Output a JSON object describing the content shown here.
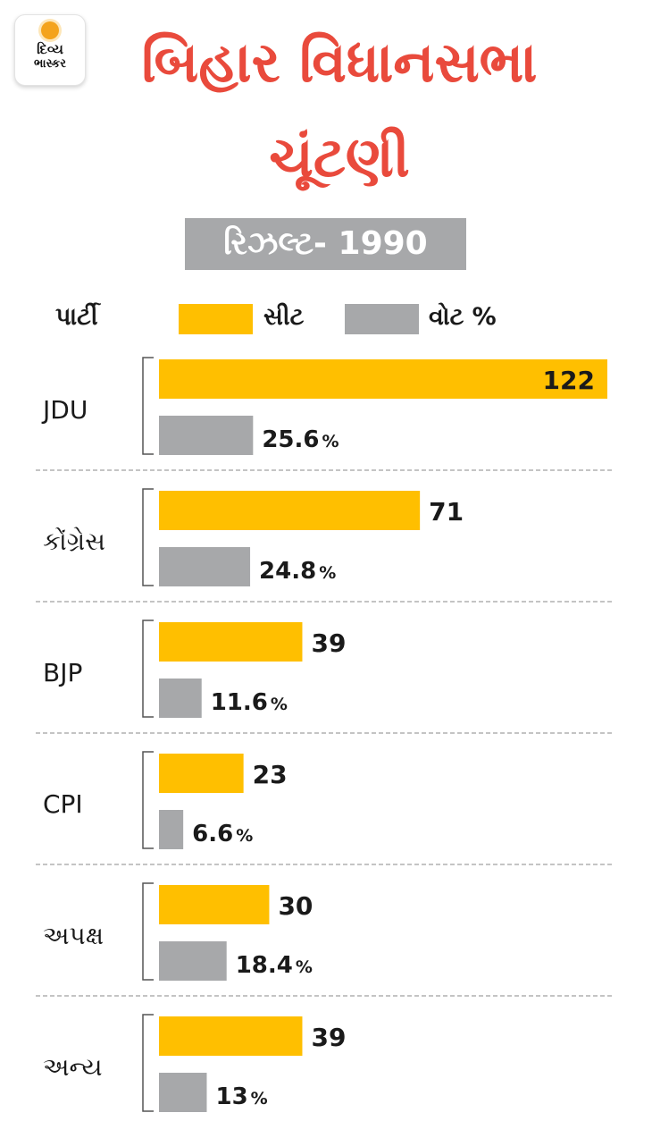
{
  "logo": {
    "line1": "દિવ્ય",
    "line2": "ભાસ્કર"
  },
  "title": {
    "line1": "બિહાર વિધાનસભા",
    "line2": "ચૂંટણી"
  },
  "subtitle": "રિઝલ્ટ- 1990",
  "legend": {
    "party": "પાર્ટી",
    "seats": "સીટ",
    "votes": "વોટ %"
  },
  "colors": {
    "title": "#e94a3c",
    "seats": "#ffbf00",
    "votes": "#a7a8aa",
    "divider": "#8a8a8a"
  },
  "chart_data": {
    "type": "bar",
    "orientation": "horizontal",
    "title": "બિહાર વિધાનસભા ચૂંટણી — રિઝલ્ટ- 1990",
    "categories": [
      "JDU",
      "કોંગ્રેસ",
      "BJP",
      "CPI",
      "અપક્ષ",
      "અન્ય"
    ],
    "series": [
      {
        "name": "સીટ",
        "values": [
          122,
          71,
          39,
          23,
          30,
          39
        ],
        "labels": [
          "122",
          "71",
          "39",
          "23",
          "30",
          "39"
        ]
      },
      {
        "name": "વોટ %",
        "values": [
          25.6,
          24.8,
          11.6,
          6.6,
          18.4,
          13
        ],
        "labels": [
          "25.6",
          "24.8",
          "11.6",
          "6.6",
          "18.4",
          "13"
        ],
        "unit": "%"
      }
    ],
    "xlabel": "",
    "ylabel": "",
    "seats_xlim": [
      0,
      122
    ],
    "votes_xlim": [
      0,
      122
    ]
  }
}
